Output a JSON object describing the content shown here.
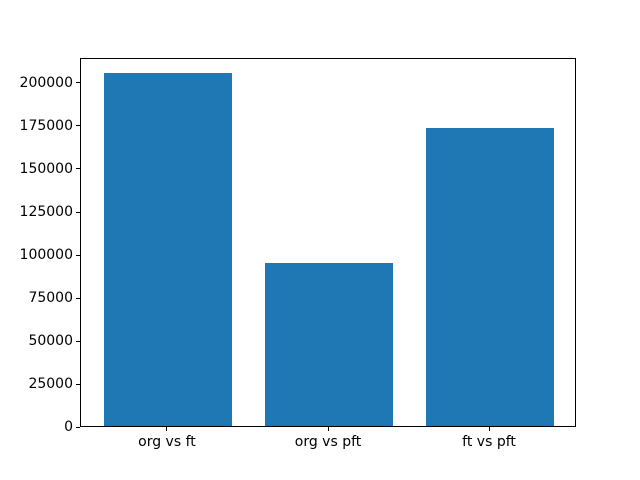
{
  "chart_data": {
    "type": "bar",
    "title": "",
    "xlabel": "",
    "ylabel": "",
    "categories": [
      "org vs ft",
      "org vs pft",
      "ft vs pft"
    ],
    "values": [
      205000,
      95000,
      173000
    ],
    "yticks": [
      0,
      25000,
      50000,
      75000,
      100000,
      125000,
      150000,
      175000,
      200000
    ],
    "ylim": [
      0,
      214700
    ],
    "bar_color": "#1f77b4",
    "spine_color": "#000000",
    "background_color": "#ffffff",
    "grid": false,
    "legend": null
  }
}
